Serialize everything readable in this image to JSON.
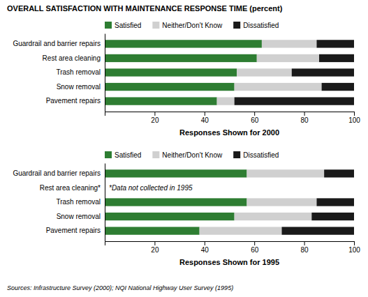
{
  "chart_data": [
    {
      "type": "bar",
      "orientation": "horizontal",
      "stacked": true,
      "title": "OVERALL SATISFACTION WITH MAINTENANCE RESPONSE TIME (percent)",
      "xlabel": "Responses Shown for 2000",
      "categories": [
        "Guardrail and barrier repairs",
        "Rest area cleaning",
        "Trash removal",
        "Snow removal",
        "Pavement repairs"
      ],
      "series": [
        {
          "name": "Satisfied",
          "color": "#2e7d32",
          "values": [
            63,
            61,
            53,
            52,
            45
          ]
        },
        {
          "name": "Neither/Don't Know",
          "color": "#d0d0d0",
          "values": [
            22,
            25,
            22,
            35,
            7
          ]
        },
        {
          "name": "Dissatisfied",
          "color": "#1a1a1a",
          "values": [
            15,
            14,
            25,
            13,
            48
          ]
        }
      ],
      "xlim": [
        0,
        100
      ],
      "xticks": [
        20,
        40,
        60,
        80,
        100
      ]
    },
    {
      "type": "bar",
      "orientation": "horizontal",
      "stacked": true,
      "xlabel": "Responses Shown for 1995",
      "categories": [
        "Guardrail and barrier repairs",
        "Rest area cleaning*",
        "Trash removal",
        "Snow removal",
        "Pavement repairs"
      ],
      "series": [
        {
          "name": "Satisfied",
          "color": "#2e7d32",
          "values": [
            57,
            null,
            57,
            52,
            38
          ]
        },
        {
          "name": "Neither/Don't Know",
          "color": "#d0d0d0",
          "values": [
            31,
            null,
            28,
            31,
            33
          ]
        },
        {
          "name": "Dissatisfied",
          "color": "#1a1a1a",
          "values": [
            12,
            null,
            15,
            17,
            29
          ]
        }
      ],
      "xlim": [
        0,
        100
      ],
      "xticks": [
        20,
        40,
        60,
        80,
        100
      ],
      "annotations": [
        "*Data not collected in 1995",
        "Sources: Infrastructure Survey (2000); NQI National Highway User Survey (1995)"
      ]
    }
  ]
}
